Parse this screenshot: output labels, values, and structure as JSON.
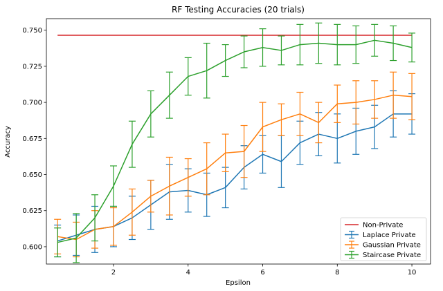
{
  "chart_data": {
    "type": "line",
    "title": "RF Testing Accuracies (20 trials)",
    "xlabel": "Epsilon",
    "ylabel": "Accuracy",
    "xlim": [
      0.2,
      10.5
    ],
    "ylim": [
      0.588,
      0.758
    ],
    "xticks": [
      2,
      4,
      6,
      8,
      10
    ],
    "yticks": [
      0.6,
      0.625,
      0.65,
      0.675,
      0.7,
      0.725,
      0.75
    ],
    "grid": false,
    "legend_position": "bottom-right",
    "x": [
      0.5,
      1.0,
      1.5,
      2.0,
      2.5,
      3.0,
      3.5,
      4.0,
      4.5,
      5.0,
      5.5,
      6.0,
      6.5,
      7.0,
      7.5,
      8.0,
      8.5,
      9.0,
      9.5,
      10.0
    ],
    "series": [
      {
        "name": "Non-Private",
        "color": "#d62728",
        "errorbars": false,
        "values": [
          0.7465,
          0.7465,
          0.7465,
          0.7465,
          0.7465,
          0.7465,
          0.7465,
          0.7465,
          0.7465,
          0.7465,
          0.7465,
          0.7465,
          0.7465,
          0.7465,
          0.7465,
          0.7465,
          0.7465,
          0.7465,
          0.7465,
          0.7465
        ],
        "errors": []
      },
      {
        "name": "Laplace Private",
        "color": "#1f77b4",
        "errorbars": true,
        "values": [
          0.604,
          0.608,
          0.612,
          0.614,
          0.62,
          0.629,
          0.638,
          0.639,
          0.636,
          0.641,
          0.655,
          0.664,
          0.659,
          0.672,
          0.678,
          0.675,
          0.68,
          0.683,
          0.692,
          0.692
        ],
        "errors": [
          0.011,
          0.014,
          0.016,
          0.014,
          0.015,
          0.017,
          0.019,
          0.015,
          0.015,
          0.014,
          0.015,
          0.013,
          0.018,
          0.015,
          0.015,
          0.017,
          0.016,
          0.015,
          0.016,
          0.014
        ]
      },
      {
        "name": "Gaussian Private",
        "color": "#ff7f0e",
        "errorbars": true,
        "values": [
          0.607,
          0.605,
          0.612,
          0.614,
          0.624,
          0.635,
          0.642,
          0.648,
          0.654,
          0.665,
          0.666,
          0.683,
          0.688,
          0.692,
          0.686,
          0.699,
          0.7,
          0.702,
          0.705,
          0.704
        ],
        "errors": [
          0.012,
          0.012,
          0.013,
          0.013,
          0.016,
          0.011,
          0.02,
          0.013,
          0.018,
          0.013,
          0.018,
          0.017,
          0.011,
          0.015,
          0.014,
          0.013,
          0.015,
          0.013,
          0.016,
          0.016
        ]
      },
      {
        "name": "Staircase Private",
        "color": "#2ca02c",
        "errorbars": true,
        "values": [
          0.603,
          0.606,
          0.62,
          0.642,
          0.671,
          0.692,
          0.705,
          0.718,
          0.722,
          0.729,
          0.735,
          0.738,
          0.736,
          0.74,
          0.741,
          0.74,
          0.74,
          0.743,
          0.741,
          0.738
        ],
        "errors": [
          0.01,
          0.017,
          0.016,
          0.014,
          0.016,
          0.016,
          0.016,
          0.013,
          0.019,
          0.011,
          0.011,
          0.013,
          0.01,
          0.014,
          0.014,
          0.014,
          0.013,
          0.011,
          0.012,
          0.01
        ]
      }
    ]
  }
}
